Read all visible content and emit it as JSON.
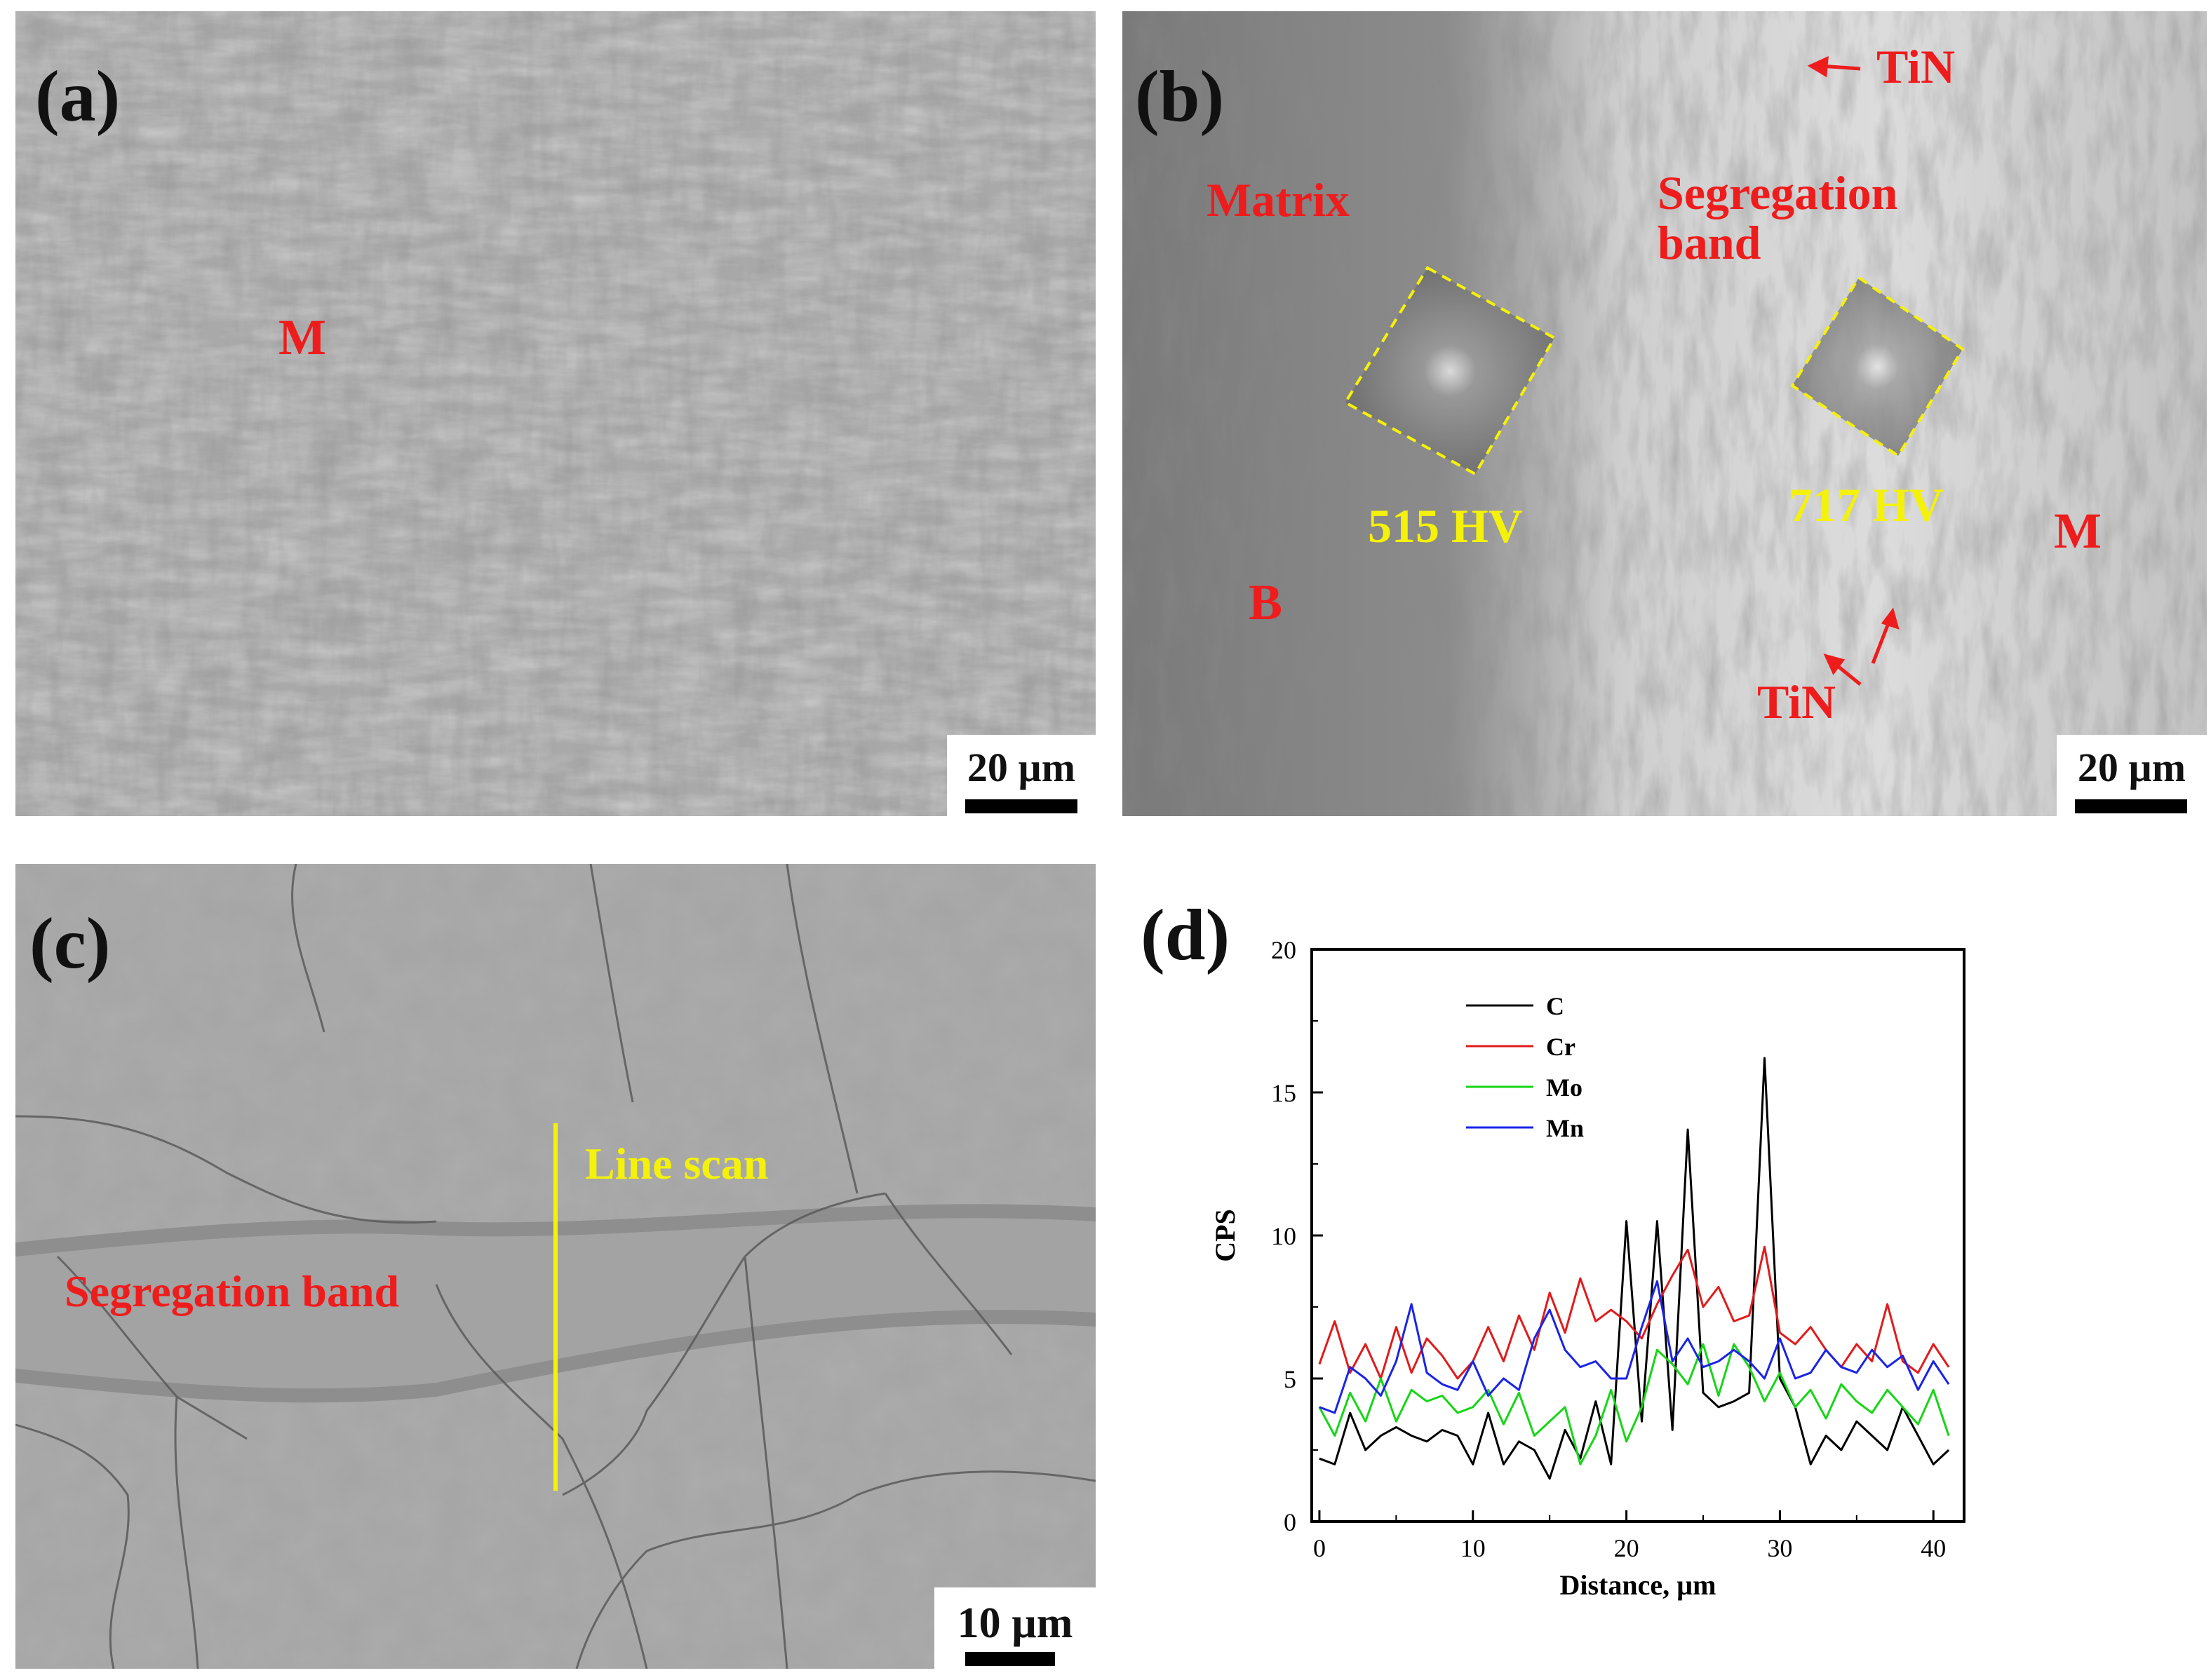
{
  "figure": {
    "panels": [
      {
        "id": "a",
        "label": "(a)",
        "scale_bar": "20 µm",
        "annotations": {
          "phase": "M"
        }
      },
      {
        "id": "b",
        "label": "(b)",
        "scale_bar": "20 µm",
        "annotations": {
          "tin_top": "TiN",
          "matrix": "Matrix",
          "segregation_band": "Segregation\nband",
          "hv_left": "515 HV",
          "hv_right": "717 HV",
          "phase_m": "M",
          "phase_b": "B",
          "tin_bottom": "TiN"
        }
      },
      {
        "id": "c",
        "label": "(c)",
        "scale_bar": "10 µm",
        "annotations": {
          "line_scan": "Line scan",
          "segregation_band": "Segregation band"
        }
      },
      {
        "id": "d",
        "label": "(d)"
      }
    ]
  },
  "chart_data": {
    "type": "line",
    "xlabel": "Distance, µm",
    "ylabel": "CPS",
    "xlim": [
      -0.5,
      42
    ],
    "ylim": [
      0,
      20
    ],
    "xticks": [
      0,
      10,
      20,
      30,
      40
    ],
    "yticks": [
      0,
      5,
      10,
      15,
      20
    ],
    "legend_position": "top-left",
    "x": [
      0,
      1,
      2,
      3,
      4,
      5,
      6,
      7,
      8,
      9,
      10,
      11,
      12,
      13,
      14,
      15,
      16,
      17,
      18,
      19,
      20,
      21,
      22,
      23,
      24,
      25,
      26,
      27,
      28,
      29,
      30,
      31,
      32,
      33,
      34,
      35,
      36,
      37,
      38,
      39,
      40,
      41
    ],
    "series": [
      {
        "name": "C",
        "color": "#000000",
        "values": [
          2.2,
          2.0,
          3.8,
          2.5,
          3.0,
          3.3,
          3.0,
          2.8,
          3.2,
          3.0,
          2.0,
          3.8,
          2.0,
          2.8,
          2.5,
          1.5,
          3.2,
          2.2,
          4.2,
          2.0,
          10.5,
          3.5,
          10.5,
          3.2,
          13.7,
          4.5,
          4.0,
          4.2,
          4.5,
          16.2,
          5.0,
          4.0,
          2.0,
          3.0,
          2.5,
          3.5,
          3.0,
          2.5,
          4.0,
          3.0,
          2.0,
          2.5
        ]
      },
      {
        "name": "Cr",
        "color": "#e11b1b",
        "values": [
          5.5,
          7.0,
          5.2,
          6.2,
          5.0,
          6.8,
          5.2,
          6.4,
          5.8,
          5.0,
          5.6,
          6.8,
          5.6,
          7.2,
          6.0,
          8.0,
          6.6,
          8.5,
          7.0,
          7.4,
          7.0,
          6.4,
          7.6,
          8.6,
          9.5,
          7.5,
          8.2,
          7.0,
          7.2,
          9.6,
          6.6,
          6.2,
          6.8,
          6.0,
          5.4,
          6.2,
          5.6,
          7.6,
          5.6,
          5.2,
          6.2,
          5.4
        ]
      },
      {
        "name": "Mo",
        "color": "#16d616",
        "values": [
          4.0,
          3.0,
          4.5,
          3.5,
          5.0,
          3.5,
          4.6,
          4.2,
          4.4,
          3.8,
          4.0,
          4.6,
          3.4,
          4.5,
          3.0,
          3.5,
          4.0,
          2.0,
          3.0,
          4.6,
          2.8,
          4.0,
          6.0,
          5.5,
          4.8,
          6.2,
          4.4,
          6.2,
          5.4,
          4.2,
          5.2,
          4.0,
          4.6,
          3.6,
          4.8,
          4.2,
          3.8,
          4.6,
          4.0,
          3.4,
          4.6,
          3.0
        ]
      },
      {
        "name": "Mn",
        "color": "#1a24e6",
        "values": [
          4.0,
          3.8,
          5.4,
          5.0,
          4.4,
          5.6,
          7.6,
          5.2,
          4.8,
          4.6,
          5.6,
          4.4,
          5.0,
          4.6,
          6.4,
          7.4,
          6.0,
          5.4,
          5.6,
          5.0,
          5.0,
          6.8,
          8.4,
          5.6,
          6.4,
          5.4,
          5.6,
          6.0,
          5.6,
          5.0,
          6.4,
          5.0,
          5.2,
          6.0,
          5.4,
          5.2,
          6.0,
          5.4,
          5.8,
          4.6,
          5.6,
          4.8
        ]
      }
    ]
  },
  "style": {
    "annotation_red": "#ee1c1c",
    "annotation_yellow": "#f5f20a"
  }
}
